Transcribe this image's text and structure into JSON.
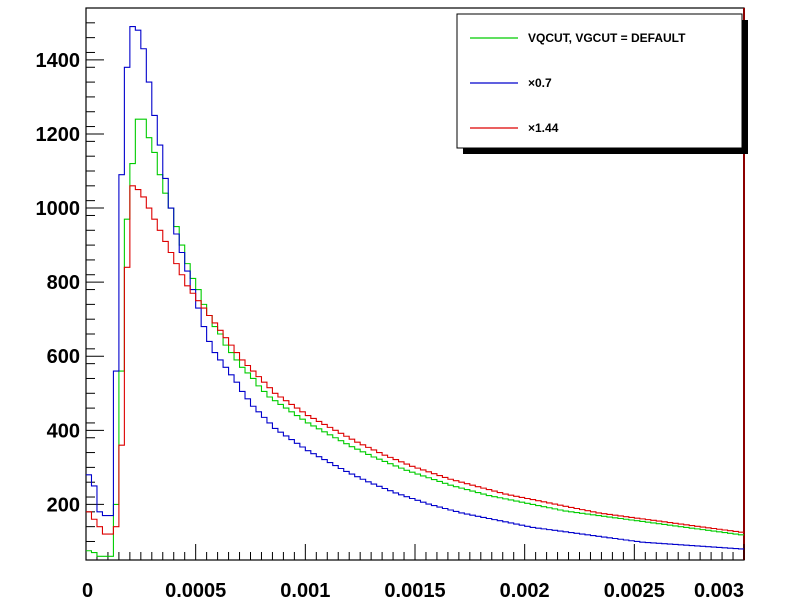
{
  "chart_data": {
    "type": "line",
    "title": "",
    "xlabel": "",
    "ylabel": "",
    "xlim": [
      0,
      0.003
    ],
    "ylim": [
      50,
      1540
    ],
    "grid": false,
    "legend_position": "top-right",
    "x_ticks": [
      {
        "value": 0,
        "label": "0"
      },
      {
        "value": 0.0005,
        "label": "0.0005"
      },
      {
        "value": 0.001,
        "label": "0.001"
      },
      {
        "value": 0.0015,
        "label": "0.0015"
      },
      {
        "value": 0.002,
        "label": "0.002"
      },
      {
        "value": 0.0025,
        "label": "0.0025"
      },
      {
        "value": 0.003,
        "label": "0.003"
      }
    ],
    "y_ticks": [
      {
        "value": 200,
        "label": "200"
      },
      {
        "value": 400,
        "label": "400"
      },
      {
        "value": 600,
        "label": "600"
      },
      {
        "value": 800,
        "label": "800"
      },
      {
        "value": 1000,
        "label": "1000"
      },
      {
        "value": 1200,
        "label": "1200"
      },
      {
        "value": 1400,
        "label": "1400"
      }
    ],
    "bin_edges": {
      "start": 0,
      "width": 2.5e-05,
      "count": 120
    },
    "series": [
      {
        "name": "VQCUT, VGCUT = DEFAULT",
        "color": "#00cc00",
        "values": [
          75,
          70,
          60,
          60,
          60,
          200,
          560,
          970,
          1120,
          1240,
          1240,
          1190,
          1150,
          1090,
          1040,
          1000,
          950,
          900,
          850,
          810,
          780,
          740,
          710,
          680,
          660,
          630,
          610,
          590,
          570,
          555,
          540,
          520,
          505,
          490,
          480,
          470,
          460,
          450,
          440,
          430,
          420,
          412,
          404,
          396,
          388,
          380,
          372,
          364,
          356,
          349,
          342,
          335,
          328,
          322,
          316,
          310,
          304,
          298,
          292,
          287,
          282,
          277,
          272,
          267,
          262,
          257,
          252,
          248,
          244,
          240,
          236,
          232,
          228,
          224,
          221,
          218,
          215,
          212,
          209,
          206,
          203,
          200,
          197,
          194,
          191,
          188,
          185,
          182,
          180,
          178,
          176,
          174,
          172,
          170,
          168,
          166,
          164,
          162,
          160,
          158,
          156,
          154,
          152,
          150,
          148,
          146,
          144,
          142,
          140,
          138,
          136,
          134,
          132,
          130,
          128,
          126,
          124,
          122,
          120,
          118
        ]
      },
      {
        "name": "×0.7",
        "color": "#0000cc",
        "values": [
          280,
          250,
          180,
          170,
          170,
          560,
          1090,
          1380,
          1490,
          1480,
          1430,
          1340,
          1250,
          1170,
          1080,
          1000,
          930,
          880,
          830,
          780,
          730,
          680,
          640,
          610,
          590,
          570,
          550,
          530,
          505,
          485,
          465,
          450,
          435,
          420,
          405,
          395,
          385,
          375,
          365,
          355,
          345,
          337,
          329,
          321,
          313,
          305,
          297,
          289,
          282,
          275,
          268,
          261,
          255,
          249,
          243,
          237,
          231,
          226,
          221,
          216,
          211,
          206,
          201,
          197,
          193,
          189,
          185,
          181,
          177,
          174,
          171,
          168,
          165,
          162,
          159,
          156,
          153,
          150,
          147,
          144,
          141,
          138,
          136,
          134,
          132,
          130,
          128,
          126,
          124,
          122,
          120,
          118,
          116,
          114,
          112,
          110,
          108,
          106,
          104,
          102,
          100,
          98,
          97,
          96,
          95,
          94,
          93,
          92,
          91,
          90,
          89,
          88,
          87,
          86,
          85,
          84,
          83,
          82,
          81,
          80
        ]
      },
      {
        "name": "×1.44",
        "color": "#dd0000",
        "values": [
          180,
          160,
          140,
          120,
          120,
          140,
          360,
          840,
          1060,
          1050,
          1030,
          1000,
          970,
          940,
          910,
          880,
          850,
          820,
          790,
          770,
          750,
          730,
          710,
          690,
          670,
          650,
          630,
          610,
          590,
          575,
          560,
          545,
          530,
          515,
          500,
          490,
          480,
          470,
          460,
          450,
          440,
          432,
          424,
          416,
          408,
          400,
          392,
          384,
          376,
          368,
          361,
          354,
          347,
          340,
          333,
          327,
          321,
          315,
          309,
          303,
          298,
          293,
          288,
          283,
          278,
          273,
          268,
          264,
          260,
          256,
          252,
          248,
          244,
          240,
          236,
          232,
          228,
          225,
          222,
          219,
          216,
          213,
          210,
          207,
          204,
          201,
          198,
          195,
          192,
          189,
          186,
          183,
          180,
          177,
          175,
          173,
          171,
          169,
          167,
          165,
          163,
          161,
          159,
          157,
          155,
          153,
          151,
          149,
          147,
          145,
          143,
          141,
          139,
          137,
          135,
          133,
          131,
          129,
          127,
          125
        ]
      }
    ],
    "legend": [
      {
        "label": "VQCUT, VGCUT = DEFAULT",
        "color": "#00cc00"
      },
      {
        "label": "×0.7",
        "color": "#0000cc"
      },
      {
        "label": "×1.44",
        "color": "#dd0000"
      }
    ]
  }
}
